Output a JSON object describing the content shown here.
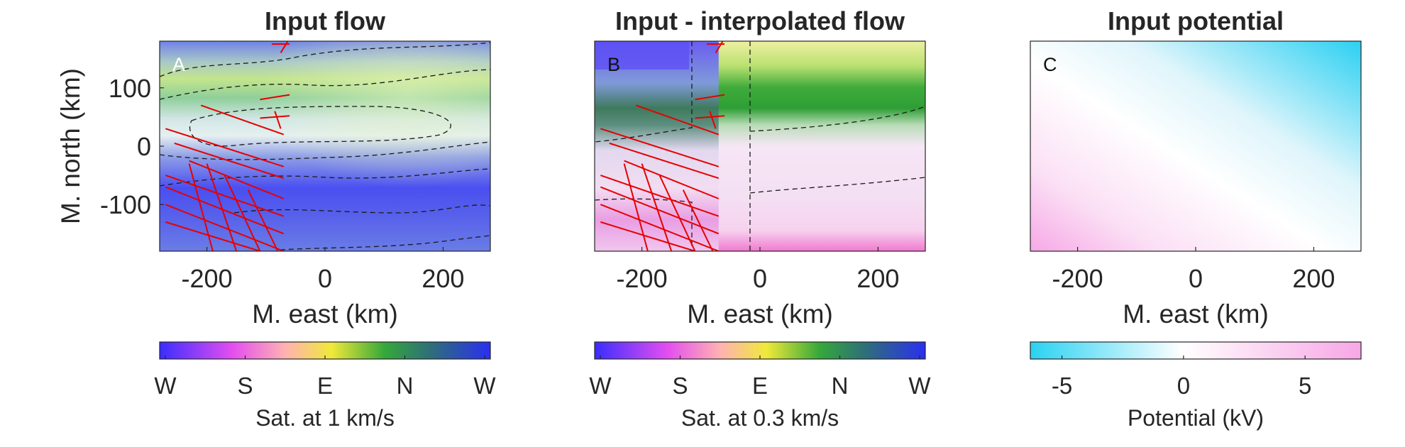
{
  "chart_data": [
    {
      "type": "heatmap",
      "panel": "A",
      "title": "Input flow",
      "xlabel": "M. east (km)",
      "ylabel": "M. north (km)",
      "xlim": [
        -280,
        280
      ],
      "ylim": [
        -180,
        180
      ],
      "xticks": [
        "-200",
        "0",
        "200"
      ],
      "yticks": [
        "100",
        "0",
        "-100"
      ],
      "colorbar": {
        "label": "Sat. at 1 km/s",
        "ticks": [
          "W",
          "S",
          "E",
          "N",
          "W"
        ],
        "colors": [
          "#3a2dff",
          "#e34ef0",
          "#ffb2b2",
          "#f0e93a",
          "#35a83a",
          "#2e6e7a",
          "#2a2ff0"
        ]
      },
      "tracks": [
        [
          [
            -60,
            175
          ],
          [
            -90,
            175
          ]
        ],
        [
          [
            -75,
            160
          ],
          [
            -60,
            185
          ]
        ],
        [
          [
            -110,
            80
          ],
          [
            -60,
            88
          ]
        ],
        [
          [
            -110,
            48
          ],
          [
            -60,
            52
          ]
        ],
        [
          [
            -85,
            60
          ],
          [
            -75,
            30
          ]
        ],
        [
          [
            -210,
            70
          ],
          [
            -70,
            20
          ]
        ],
        [
          [
            -270,
            30
          ],
          [
            -70,
            -35
          ]
        ],
        [
          [
            -255,
            5
          ],
          [
            -70,
            -55
          ]
        ],
        [
          [
            -230,
            -25
          ],
          [
            -70,
            -90
          ]
        ],
        [
          [
            -270,
            -70
          ],
          [
            -70,
            -150
          ]
        ],
        [
          [
            -270,
            -100
          ],
          [
            -70,
            -180
          ]
        ],
        [
          [
            -270,
            -130
          ],
          [
            -110,
            -180
          ]
        ],
        [
          [
            -230,
            -30
          ],
          [
            -190,
            -180
          ]
        ],
        [
          [
            -200,
            -30
          ],
          [
            -150,
            -180
          ]
        ],
        [
          [
            -170,
            -50
          ],
          [
            -110,
            -180
          ]
        ],
        [
          [
            -130,
            -75
          ],
          [
            -80,
            -180
          ]
        ],
        [
          [
            -270,
            -50
          ],
          [
            -70,
            -120
          ]
        ]
      ]
    },
    {
      "type": "heatmap",
      "panel": "B",
      "title": "Input - interpolated flow",
      "xlabel": "M. east (km)",
      "ylabel": "",
      "xlim": [
        -280,
        280
      ],
      "ylim": [
        -180,
        180
      ],
      "xticks": [
        "-200",
        "0",
        "200"
      ],
      "yticks": [],
      "colorbar": {
        "label": "Sat. at 0.3 km/s",
        "ticks": [
          "W",
          "S",
          "E",
          "N",
          "W"
        ],
        "colors": [
          "#3a2dff",
          "#e34ef0",
          "#ffb2b2",
          "#f0e93a",
          "#35a83a",
          "#2e6e7a",
          "#2a2ff0"
        ]
      },
      "tracks": [
        [
          [
            -60,
            175
          ],
          [
            -90,
            175
          ]
        ],
        [
          [
            -75,
            160
          ],
          [
            -60,
            185
          ]
        ],
        [
          [
            -110,
            80
          ],
          [
            -60,
            88
          ]
        ],
        [
          [
            -110,
            48
          ],
          [
            -60,
            52
          ]
        ],
        [
          [
            -85,
            60
          ],
          [
            -75,
            30
          ]
        ],
        [
          [
            -210,
            70
          ],
          [
            -70,
            20
          ]
        ],
        [
          [
            -270,
            30
          ],
          [
            -70,
            -35
          ]
        ],
        [
          [
            -255,
            5
          ],
          [
            -70,
            -55
          ]
        ],
        [
          [
            -230,
            -25
          ],
          [
            -70,
            -90
          ]
        ],
        [
          [
            -270,
            -70
          ],
          [
            -70,
            -150
          ]
        ],
        [
          [
            -270,
            -100
          ],
          [
            -70,
            -180
          ]
        ],
        [
          [
            -270,
            -130
          ],
          [
            -110,
            -180
          ]
        ],
        [
          [
            -230,
            -30
          ],
          [
            -190,
            -180
          ]
        ],
        [
          [
            -200,
            -30
          ],
          [
            -150,
            -180
          ]
        ],
        [
          [
            -170,
            -50
          ],
          [
            -110,
            -180
          ]
        ],
        [
          [
            -130,
            -75
          ],
          [
            -80,
            -180
          ]
        ],
        [
          [
            -270,
            -50
          ],
          [
            -70,
            -120
          ]
        ]
      ]
    },
    {
      "type": "heatmap",
      "panel": "C",
      "title": "Input potential",
      "xlabel": "M. east (km)",
      "ylabel": "",
      "xlim": [
        -280,
        280
      ],
      "ylim": [
        -180,
        180
      ],
      "xticks": [
        "-200",
        "0",
        "200"
      ],
      "yticks": [],
      "colorbar": {
        "label": "Potential (kV)",
        "ticks": [
          "-5",
          "0",
          "5"
        ],
        "range": [
          -6.3,
          7.3
        ],
        "colors": [
          "#29d2f2",
          "#ffffff",
          "#f7a6e6"
        ]
      },
      "tracks": []
    }
  ]
}
